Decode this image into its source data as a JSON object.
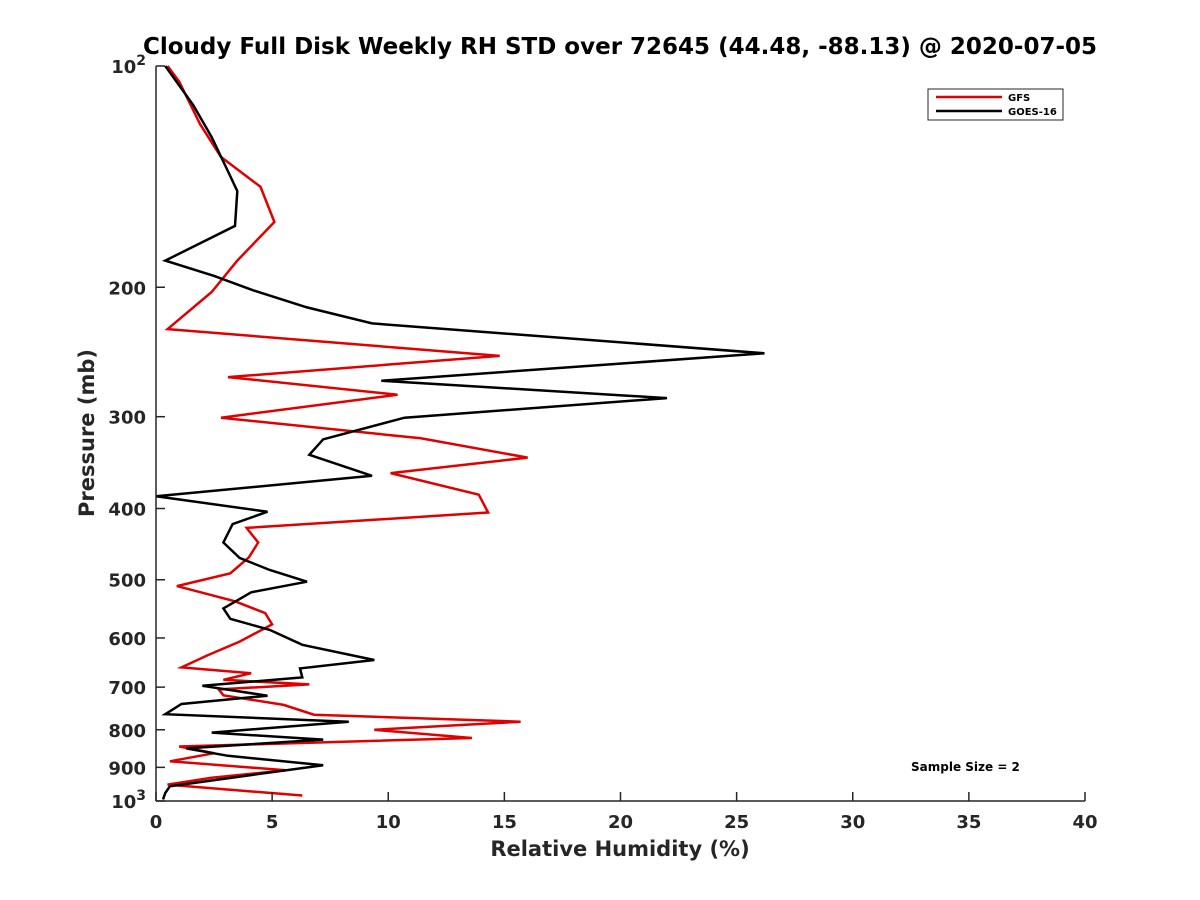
{
  "chart_data": {
    "type": "line",
    "title": "Cloudy Full Disk Weekly RH STD over 72645 (44.48, -88.13) @ 2020-07-05",
    "xlabel": "Relative Humidity (%)",
    "ylabel": "Pressure (mb)",
    "xlim": [
      0,
      40
    ],
    "ylim": [
      100,
      1000
    ],
    "y_scale": "log",
    "y_reversed": true,
    "x_ticks": [
      0,
      5,
      10,
      15,
      20,
      25,
      30,
      35,
      40
    ],
    "y_ticks": [
      {
        "value": 100,
        "base": "10",
        "exp": "2"
      },
      {
        "value": 200,
        "label": "200"
      },
      {
        "value": 300,
        "label": "300"
      },
      {
        "value": 400,
        "label": "400"
      },
      {
        "value": 500,
        "label": "500"
      },
      {
        "value": 600,
        "label": "600"
      },
      {
        "value": 700,
        "label": "700"
      },
      {
        "value": 800,
        "label": "800"
      },
      {
        "value": 900,
        "label": "900"
      },
      {
        "value": 1000,
        "base": "10",
        "exp": "3"
      }
    ],
    "grid": false,
    "legend_position": "top-right",
    "annotation": "Sample Size = 2",
    "series": [
      {
        "name": "GFS",
        "color": "#e00000",
        "points": [
          [
            0.5,
            100
          ],
          [
            1.0,
            105
          ],
          [
            1.9,
            120
          ],
          [
            2.8,
            133
          ],
          [
            4.5,
            146
          ],
          [
            5.1,
            163
          ],
          [
            3.5,
            184
          ],
          [
            2.4,
            203
          ],
          [
            0.5,
            228
          ],
          [
            14.8,
            248
          ],
          [
            3.1,
            265
          ],
          [
            10.4,
            280
          ],
          [
            2.8,
            301
          ],
          [
            11.4,
            321
          ],
          [
            16.0,
            341
          ],
          [
            10.1,
            358
          ],
          [
            13.9,
            383
          ],
          [
            14.3,
            405
          ],
          [
            3.9,
            425
          ],
          [
            4.4,
            445
          ],
          [
            4.0,
            466
          ],
          [
            3.2,
            490
          ],
          [
            0.9,
            510
          ],
          [
            3.4,
            535
          ],
          [
            4.7,
            555
          ],
          [
            5.0,
            575
          ],
          [
            3.6,
            607
          ],
          [
            2.2,
            634
          ],
          [
            1.1,
            658
          ],
          [
            4.1,
            670
          ],
          [
            2.9,
            684
          ],
          [
            6.6,
            694
          ],
          [
            2.7,
            705
          ],
          [
            2.9,
            718
          ],
          [
            5.5,
            740
          ],
          [
            6.8,
            763
          ],
          [
            15.7,
            780
          ],
          [
            9.4,
            800
          ],
          [
            13.6,
            821
          ],
          [
            1.0,
            843
          ],
          [
            2.5,
            861
          ],
          [
            0.6,
            883
          ],
          [
            5.6,
            908
          ],
          [
            2.4,
            930
          ],
          [
            0.5,
            950
          ],
          [
            2.8,
            963
          ],
          [
            6.3,
            983
          ]
        ]
      },
      {
        "name": "GOES-16",
        "color": "#000000",
        "points": [
          [
            0.4,
            100
          ],
          [
            1.6,
            113
          ],
          [
            2.4,
            125
          ],
          [
            3.0,
            137
          ],
          [
            3.5,
            148
          ],
          [
            3.4,
            165
          ],
          [
            0.4,
            184
          ],
          [
            2.5,
            193
          ],
          [
            4.2,
            202
          ],
          [
            6.5,
            213
          ],
          [
            9.3,
            224
          ],
          [
            26.2,
            246
          ],
          [
            9.7,
            268
          ],
          [
            22.0,
            283
          ],
          [
            10.7,
            301
          ],
          [
            7.2,
            322
          ],
          [
            6.6,
            338
          ],
          [
            9.3,
            361
          ],
          [
            0.0,
            385
          ],
          [
            4.8,
            404
          ],
          [
            3.3,
            420
          ],
          [
            2.9,
            445
          ],
          [
            3.6,
            467
          ],
          [
            4.9,
            485
          ],
          [
            6.5,
            503
          ],
          [
            4.1,
            520
          ],
          [
            2.9,
            547
          ],
          [
            3.2,
            565
          ],
          [
            4.9,
            585
          ],
          [
            6.3,
            613
          ],
          [
            9.4,
            643
          ],
          [
            6.2,
            660
          ],
          [
            6.3,
            679
          ],
          [
            2.0,
            697
          ],
          [
            4.8,
            719
          ],
          [
            1.1,
            738
          ],
          [
            0.4,
            762
          ],
          [
            8.3,
            780
          ],
          [
            2.4,
            807
          ],
          [
            7.2,
            825
          ],
          [
            1.3,
            848
          ],
          [
            3.1,
            868
          ],
          [
            7.2,
            894
          ],
          [
            4.2,
            921
          ],
          [
            0.6,
            955
          ],
          [
            0.4,
            975
          ],
          [
            0.3,
            995
          ]
        ]
      }
    ]
  }
}
